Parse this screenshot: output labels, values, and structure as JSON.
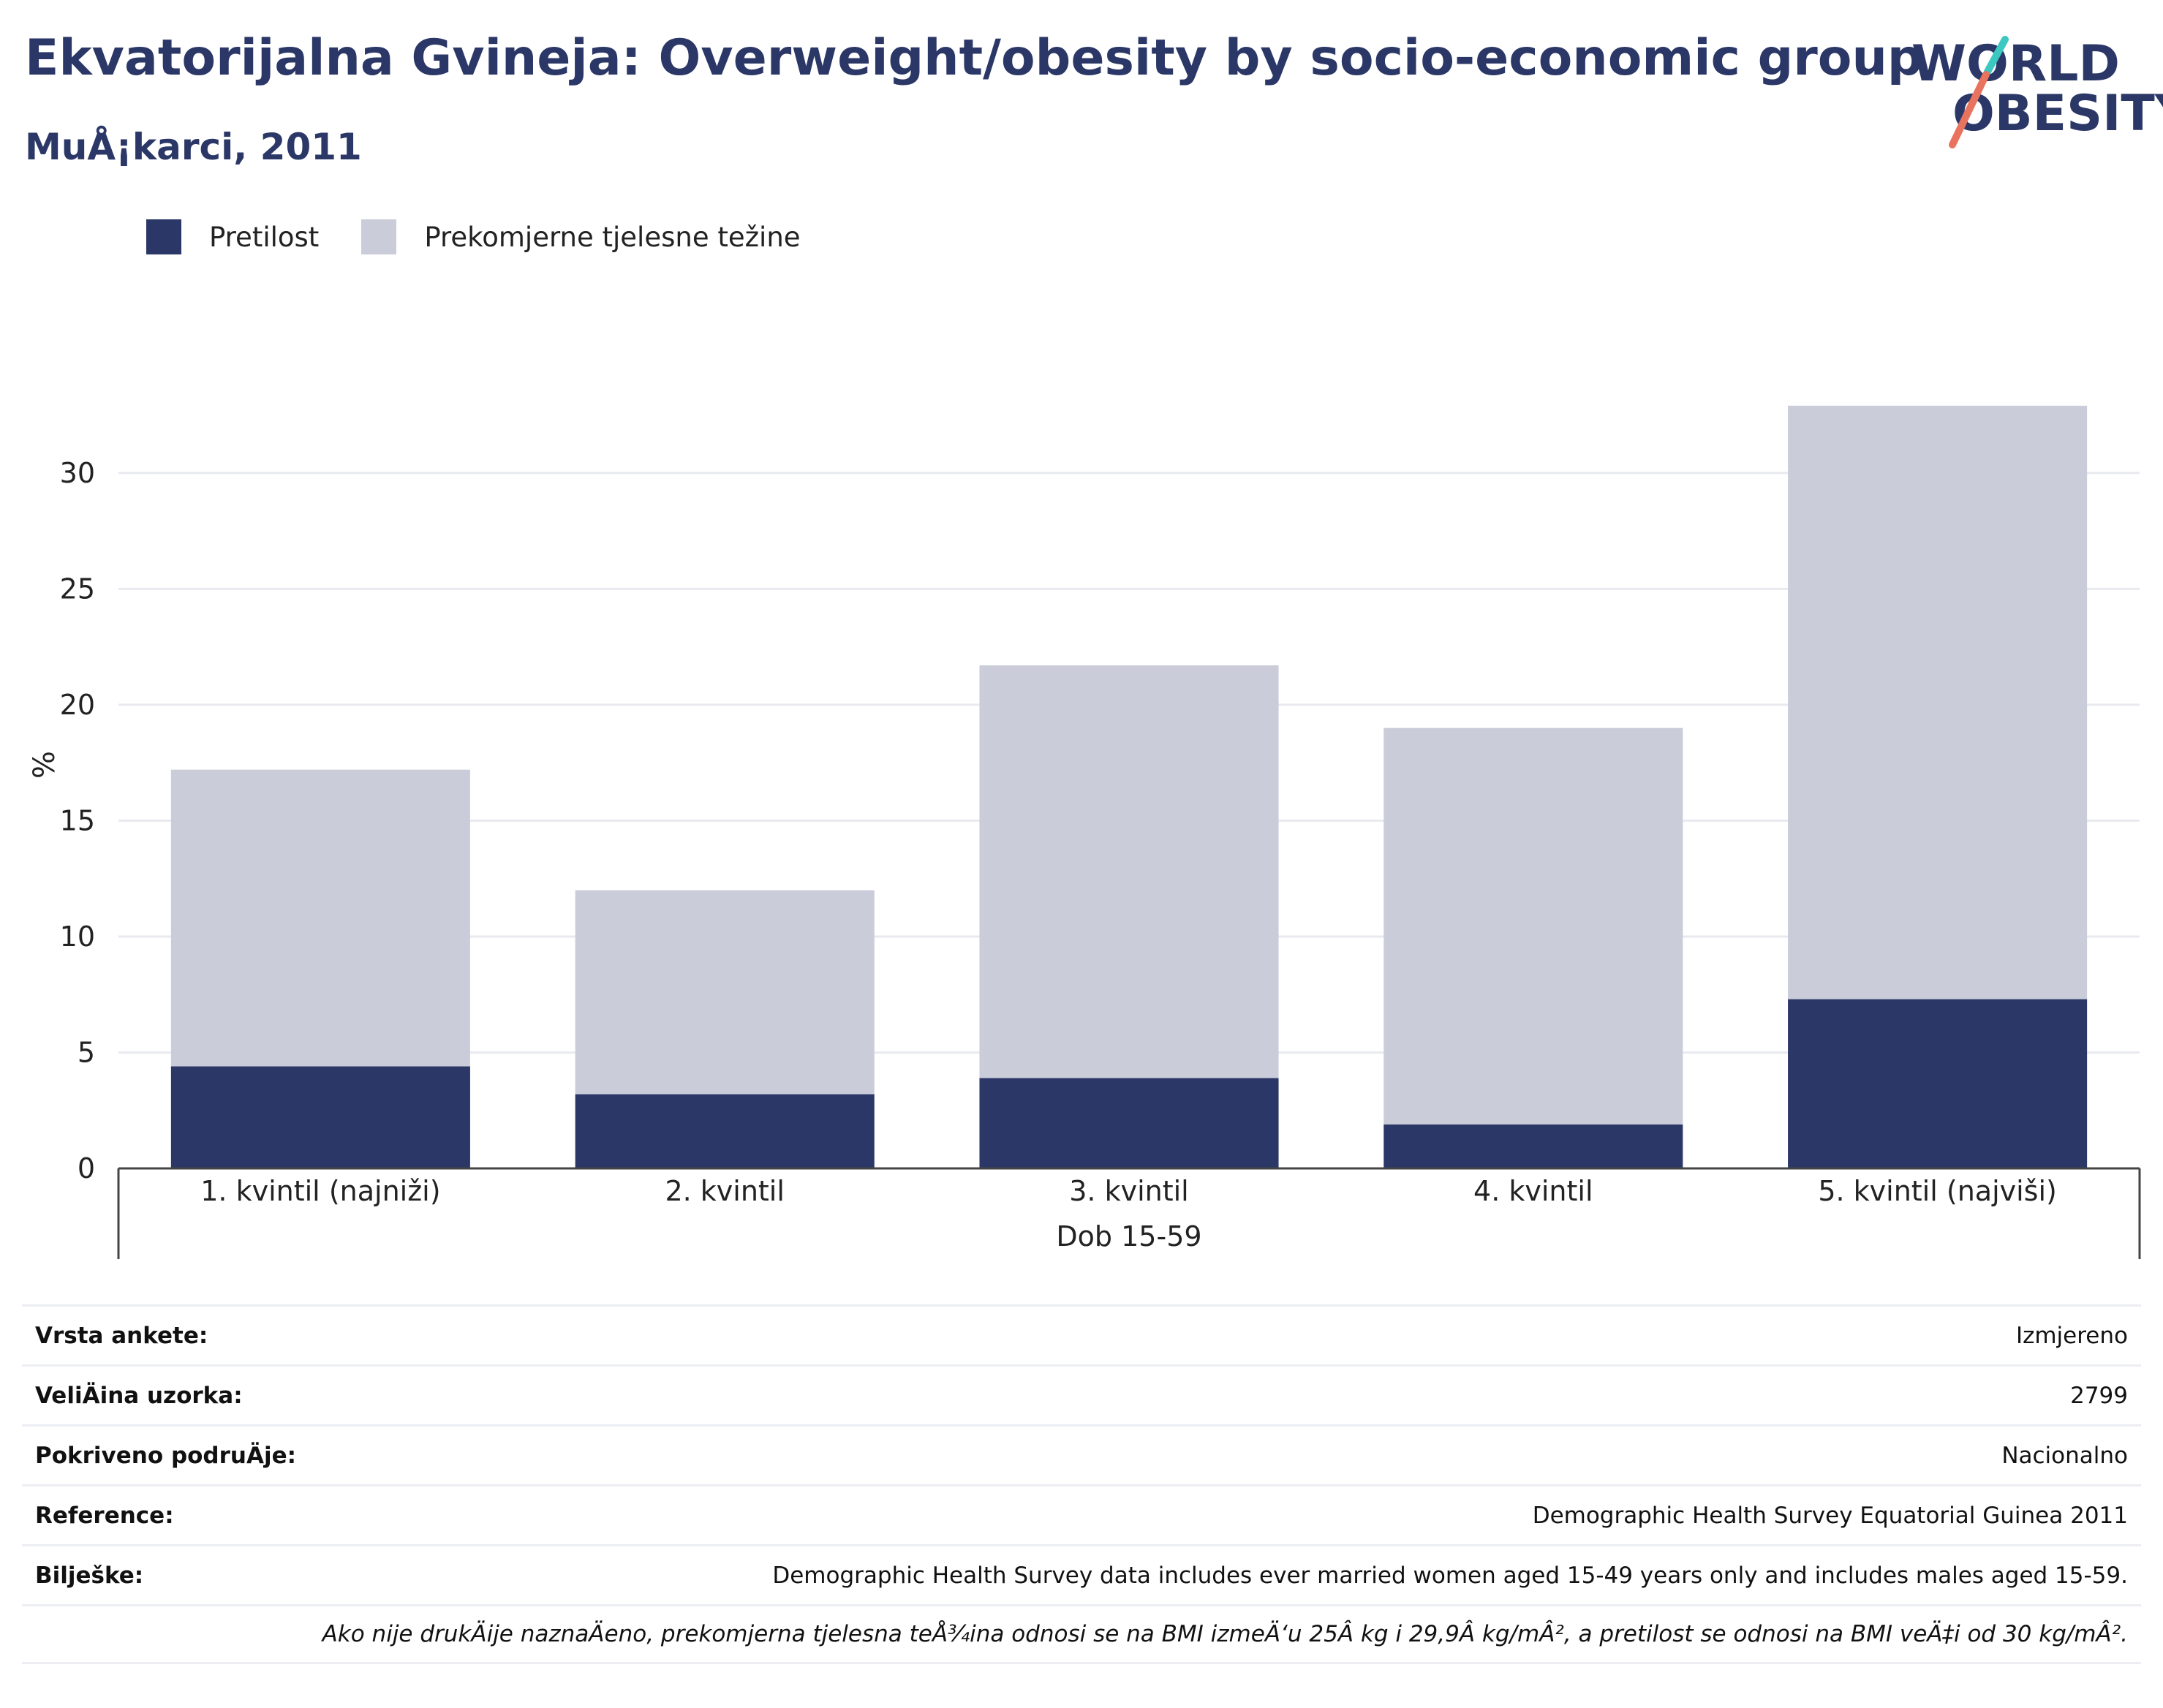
{
  "header": {
    "title": "Ekvatorijalna Gvineja: Overweight/obesity by socio-economic group",
    "subtitle": "MuÅ¡karci, 2011"
  },
  "logo": {
    "line1": "WORLD",
    "line2": "OBESITY",
    "colors": {
      "navy": "#2b3766",
      "teal": "#3cc7c1",
      "coral": "#e8735f"
    }
  },
  "legend": [
    {
      "label": "Pretilost",
      "color": "#2b3766"
    },
    {
      "label": "Prekomjerne tjelesne težine",
      "color": "#cacdd9"
    }
  ],
  "chart_data": {
    "type": "bar",
    "stacked": true,
    "categories": [
      "1. kvintil (najniži)",
      "2. kvintil",
      "3. kvintil",
      "4. kvintil",
      "5. kvintil (najviši)"
    ],
    "series": [
      {
        "name": "Pretilost",
        "color": "#2b3766",
        "values": [
          4.4,
          3.2,
          3.9,
          1.9,
          7.3
        ]
      },
      {
        "name": "Prekomjerne tjelesne težine",
        "color": "#cacdd9",
        "values": [
          12.8,
          8.8,
          17.8,
          17.1,
          25.6
        ]
      }
    ],
    "xlabel": "Dob 15-59",
    "ylabel": "%",
    "ylim": [
      0,
      34
    ],
    "yticks": [
      0,
      5,
      10,
      15,
      20,
      25,
      30
    ],
    "grid": true,
    "legend_position": "top-left"
  },
  "info": [
    {
      "key": "Vrsta ankete:",
      "value": "Izmjereno"
    },
    {
      "key": "VeliÄ\bina uzorka:",
      "value": "2799"
    },
    {
      "key": "Pokriveno podruÄ\bje:",
      "value": "Nacionalno"
    },
    {
      "key": "Reference:",
      "value": "Demographic Health Survey Equatorial Guinea 2011"
    },
    {
      "key": "Bilješke:",
      "value": "Demographic Health Survey data includes ever married women aged 15-49 years only and includes males aged 15-59."
    }
  ],
  "footnote": "Ako nije drukÄ\bije naznaÄ\beno, prekomjerna tjelesna teÅ¾ina odnosi se na BMI izmeÄ‘u 25Â kg i 29,9Â kg/mÂ², a pretilost se odnosi na BMI veÄ‡i od 30 kg/mÂ²."
}
